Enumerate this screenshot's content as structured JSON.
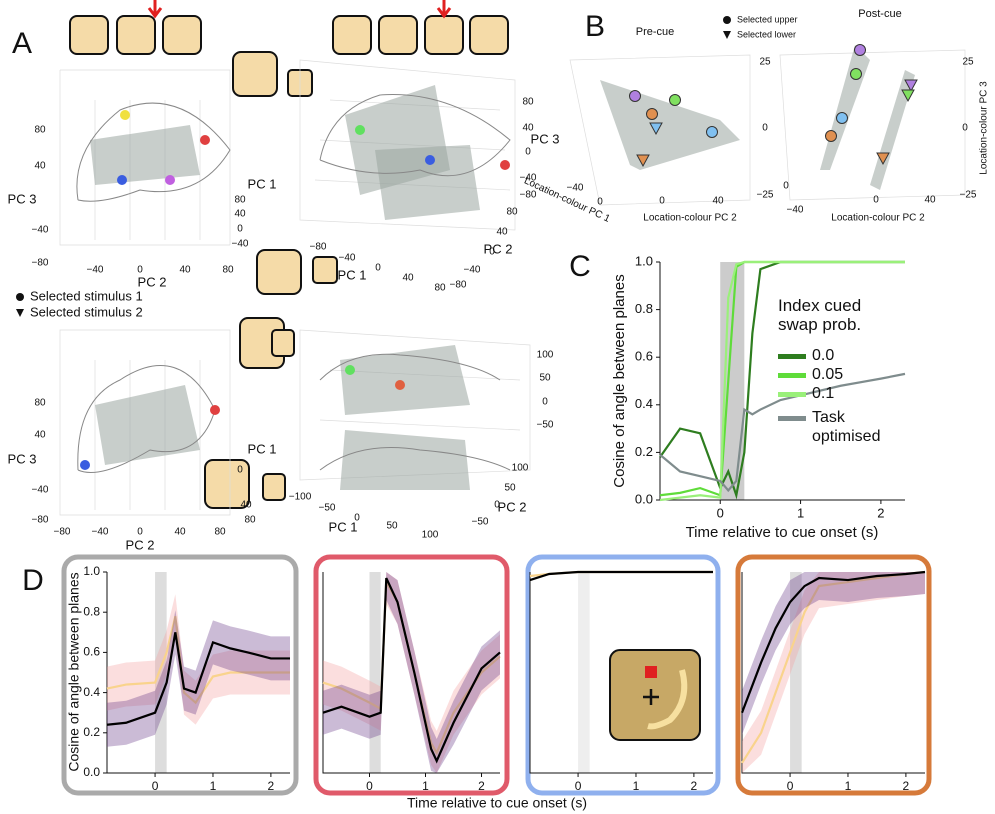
{
  "figure": {
    "panel_labels": [
      "A",
      "B",
      "C",
      "D"
    ],
    "panel_A": {
      "top_left": {
        "labels": [
          "PC 3",
          "PC 2",
          "PC 1"
        ],
        "ticks": [
          "80",
          "40",
          "−40",
          "−80",
          "−40",
          "0",
          "40",
          "80",
          "80",
          "40",
          "0",
          "−40"
        ]
      },
      "top_right": {
        "labels": [
          "PC 3",
          "PC 2",
          "PC 1"
        ],
        "ticks": [
          "80",
          "40",
          "0",
          "−40",
          "−80",
          "−80",
          "−40",
          "0",
          "40",
          "80",
          "80",
          "40",
          "0",
          "−40",
          "−80"
        ]
      },
      "legend": [
        "Selected stimulus 1",
        "Selected stimulus 2"
      ],
      "bottom_left": {
        "labels": [
          "PC 3",
          "PC 2",
          "PC 1"
        ],
        "ticks": [
          "80",
          "40",
          "−40",
          "−80",
          "−80",
          "−40",
          "0",
          "40",
          "80",
          "0",
          "40",
          "80"
        ]
      },
      "bottom_right": {
        "labels": [
          "PC 1",
          "PC 2"
        ],
        "ticks": [
          "100",
          "50",
          "0",
          "−50",
          "−100",
          "−50",
          "0",
          "50",
          "100",
          "100",
          "50",
          "0",
          "−50"
        ]
      }
    },
    "panel_B": {
      "titles": [
        "Pre-cue",
        "Post-cue"
      ],
      "legend": [
        "Selected upper",
        "Selected lower"
      ],
      "pre_cue": {
        "labels": [
          "Location-colour PC 1",
          "Location-colour PC 2"
        ],
        "ticks": [
          "25",
          "0",
          "−25",
          "−40",
          "0",
          "0",
          "40"
        ]
      },
      "post_cue": {
        "labels": [
          "Location-colour PC 3",
          "Location-colour PC 2"
        ],
        "ticks": [
          "25",
          "0",
          "−25",
          "−40",
          "0",
          "0",
          "40"
        ]
      }
    }
  },
  "chart_data": [
    {
      "type": "line",
      "ylabel": "Cosine of angle between planes",
      "xlabel": "Time relative to cue onset (s)",
      "legend_title": "Index cued swap prob.",
      "x": [
        -0.75,
        -0.5,
        -0.25,
        0,
        0.1,
        0.2,
        0.3,
        0.4,
        0.5,
        0.75,
        1,
        1.5,
        2,
        2.3
      ],
      "series": [
        {
          "name": "0.0",
          "color": "#2e7d1f",
          "values": [
            0.18,
            0.3,
            0.28,
            0.05,
            0.12,
            0.02,
            0.2,
            0.7,
            0.97,
            1,
            1,
            1,
            1,
            1
          ]
        },
        {
          "name": "0.05",
          "color": "#5fdc3a",
          "values": [
            0.02,
            0.03,
            0.05,
            0.02,
            0.5,
            0.98,
            1,
            1,
            1,
            1,
            1,
            1,
            1,
            1
          ]
        },
        {
          "name": "0.1",
          "color": "#9af07a",
          "values": [
            0,
            0.01,
            0.02,
            0.01,
            0.85,
            0.99,
            1,
            1,
            1,
            1,
            1,
            1,
            1,
            1
          ]
        },
        {
          "name": "Task optimised",
          "color": "#7f8c8d",
          "values": [
            0.19,
            0.12,
            0.1,
            0.08,
            0.04,
            0.08,
            0.38,
            0.36,
            0.38,
            0.42,
            0.44,
            0.48,
            0.51,
            0.53
          ]
        }
      ],
      "xlim": [
        -0.75,
        2.3
      ],
      "ylim": [
        0,
        1
      ],
      "xticks": [
        0,
        1,
        2
      ],
      "yticks": [
        {
          "value": 0,
          "label": "0.0"
        },
        {
          "value": 0.2,
          "label": "0.2"
        },
        {
          "value": 0.4,
          "label": "0.4"
        },
        {
          "value": 0.6,
          "label": "0.6"
        },
        {
          "value": 0.8,
          "label": "0.8"
        },
        {
          "value": 1,
          "label": "1.0"
        }
      ]
    },
    {
      "type": "line",
      "ylabel": "Cosine of angle between planes",
      "xlabel": "Time relative to cue onset (s)",
      "x": [
        -0.83,
        -0.5,
        0,
        0.2,
        0.35,
        0.5,
        0.7,
        1,
        1.3,
        1.6,
        2,
        2.33
      ],
      "series": [
        {
          "color": "#f9d38c",
          "values": [
            0.42,
            0.44,
            0.45,
            0.6,
            0.78,
            0.4,
            0.35,
            0.48,
            0.5,
            0.5,
            0.5,
            0.5
          ]
        },
        {
          "color": "#000000",
          "values": [
            0.24,
            0.25,
            0.3,
            0.45,
            0.7,
            0.42,
            0.4,
            0.65,
            0.62,
            0.6,
            0.57,
            0.57
          ]
        }
      ],
      "xlim": [
        -0.83,
        2.33
      ],
      "ylim": [
        0,
        1
      ],
      "xticks": [
        0,
        1,
        2
      ],
      "yticks": [
        {
          "value": 0,
          "label": "0.0"
        },
        {
          "value": 0.2,
          "label": "0.2"
        },
        {
          "value": 0.4,
          "label": "0.4"
        },
        {
          "value": 0.6,
          "label": "0.6"
        },
        {
          "value": 0.8,
          "label": "0.8"
        },
        {
          "value": 1,
          "label": "1.0"
        }
      ]
    },
    {
      "type": "line",
      "x": [
        -0.83,
        -0.5,
        0,
        0.2,
        0.3,
        0.5,
        0.8,
        1.1,
        1.2,
        1.5,
        2,
        2.33
      ],
      "series": [
        {
          "color": "#f9d38c",
          "values": [
            0.45,
            0.42,
            0.35,
            0.32,
            0.95,
            0.85,
            0.5,
            0.15,
            0.1,
            0.3,
            0.5,
            0.58
          ]
        },
        {
          "color": "#000000",
          "values": [
            0.3,
            0.33,
            0.28,
            0.3,
            0.97,
            0.85,
            0.5,
            0.12,
            0.06,
            0.25,
            0.52,
            0.6
          ]
        }
      ],
      "xlim": [
        -0.83,
        2.33
      ],
      "ylim": [
        0,
        1
      ],
      "xticks": [
        0,
        1,
        2
      ]
    },
    {
      "type": "line",
      "x": [
        -0.83,
        -0.5,
        0,
        1,
        2,
        2.33
      ],
      "series": [
        {
          "color": "#f9d38c",
          "values": [
            0.98,
            0.99,
            1,
            1,
            1,
            1
          ]
        },
        {
          "color": "#000000",
          "values": [
            0.96,
            0.99,
            1,
            1,
            1,
            1
          ]
        }
      ],
      "xlim": [
        -0.83,
        2.33
      ],
      "ylim": [
        0,
        1
      ],
      "xticks": [
        0,
        1,
        2
      ]
    },
    {
      "type": "line",
      "x": [
        -0.83,
        -0.5,
        -0.25,
        0,
        0.25,
        0.5,
        1,
        1.5,
        2,
        2.33
      ],
      "series": [
        {
          "color": "#f9d38c",
          "values": [
            0.05,
            0.2,
            0.4,
            0.6,
            0.8,
            0.93,
            0.95,
            0.97,
            0.99,
            1
          ]
        },
        {
          "color": "#000000",
          "values": [
            0.3,
            0.55,
            0.72,
            0.85,
            0.93,
            0.97,
            0.96,
            0.98,
            0.99,
            1
          ]
        }
      ],
      "xlim": [
        -0.83,
        2.33
      ],
      "ylim": [
        0,
        1
      ],
      "xticks": [
        0,
        1,
        2
      ]
    }
  ]
}
